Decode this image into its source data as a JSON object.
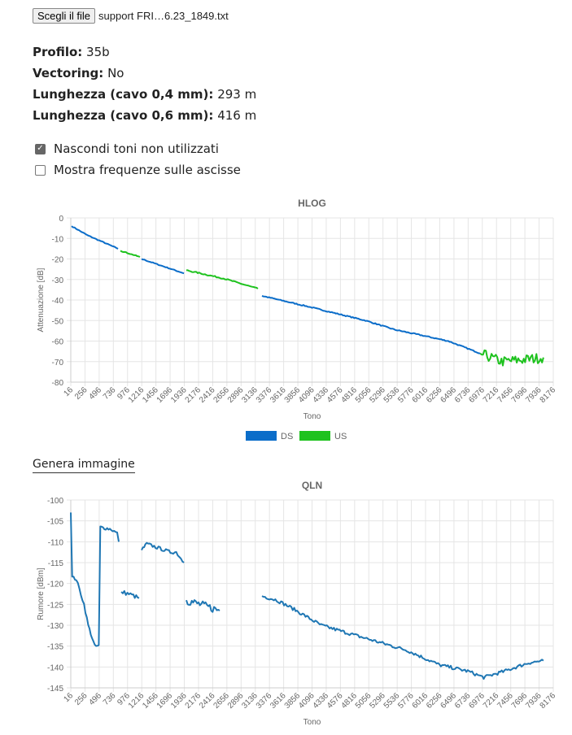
{
  "file": {
    "button_label": "Scegli il file",
    "filename": "support FRI…6.23_1849.txt"
  },
  "info": [
    {
      "label": "Profilo",
      "value": "35b"
    },
    {
      "label": "Vectoring",
      "value": "No"
    },
    {
      "label": "Lunghezza (cavo 0,4 mm)",
      "value": "293 m"
    },
    {
      "label": "Lunghezza (cavo 0,6 mm)",
      "value": "416 m"
    }
  ],
  "options": [
    {
      "label": "Nascondi toni non utilizzati",
      "checked": true
    },
    {
      "label": "Mostra frequenze sulle ascisse",
      "checked": false
    }
  ],
  "generate_image_label": "Genera immagine",
  "colors": {
    "ds": "#0b6dc9",
    "us": "#1ec21e",
    "qln": "#1f77b4",
    "grid": "#e5e5e5"
  },
  "chart_data": [
    {
      "type": "line",
      "title": "HLOG",
      "xlabel": "Tono",
      "ylabel": "Attenuazione [dB]",
      "xlim": [
        16,
        8176
      ],
      "ylim": [
        -80,
        0
      ],
      "yticks": [
        0,
        -10,
        -20,
        -30,
        -40,
        -50,
        -60,
        -70,
        -80
      ],
      "xticks": [
        16,
        256,
        496,
        736,
        976,
        1216,
        1456,
        1696,
        1936,
        2176,
        2416,
        2656,
        2896,
        3136,
        3376,
        3616,
        3856,
        4096,
        4336,
        4576,
        4816,
        5056,
        5296,
        5536,
        5776,
        6016,
        6256,
        6496,
        6736,
        6976,
        7216,
        7456,
        7696,
        7936,
        8176
      ],
      "grid": true,
      "legend": "bottom",
      "legend_items": [
        {
          "name": "DS",
          "color": "#0b6dc9"
        },
        {
          "name": "US",
          "color": "#1ec21e"
        }
      ],
      "series": [
        {
          "name": "DS",
          "color": "#0b6dc9",
          "segments": [
            {
              "noise": 0.2,
              "points": [
                [
                  30,
                  -4
                ],
                [
                  300,
                  -8.5
                ],
                [
                  815,
                  -15
                ]
              ]
            },
            {
              "noise": 0.2,
              "points": [
                [
                  1213,
                  -20
                ],
                [
                  1930,
                  -27
                ]
              ]
            },
            {
              "noise": 0.25,
              "points": [
                [
                  3250,
                  -38
                ],
                [
                  4000,
                  -43
                ],
                [
                  5000,
                  -50
                ],
                [
                  5500,
                  -54.5
                ],
                [
                  6000,
                  -57.5
                ],
                [
                  6400,
                  -60
                ],
                [
                  6940,
                  -66
                ]
              ]
            }
          ]
        },
        {
          "name": "US",
          "color": "#1ec21e",
          "segments": [
            {
              "noise": 0.2,
              "points": [
                [
                  855,
                  -16
                ],
                [
                  1185,
                  -19
                ]
              ]
            },
            {
              "noise": 0.3,
              "points": [
                [
                  1970,
                  -25.5
                ],
                [
                  2600,
                  -29.5
                ],
                [
                  3180,
                  -34.5
                ]
              ]
            },
            {
              "noise": 2.5,
              "points": [
                [
                  6940,
                  -66
                ],
                [
                  7300,
                  -70
                ],
                [
                  7700,
                  -69
                ],
                [
                  8010,
                  -68
                ]
              ]
            }
          ]
        }
      ]
    },
    {
      "type": "line",
      "title": "QLN",
      "xlabel": "Tono",
      "ylabel": "Rumore [dBm]",
      "xlim": [
        16,
        8176
      ],
      "ylim": [
        -145,
        -100
      ],
      "yticks": [
        -100,
        -105,
        -110,
        -115,
        -120,
        -125,
        -130,
        -135,
        -140,
        -145
      ],
      "xticks": [
        16,
        256,
        496,
        736,
        976,
        1216,
        1456,
        1696,
        1936,
        2176,
        2416,
        2656,
        2896,
        3136,
        3376,
        3616,
        3856,
        4096,
        4336,
        4576,
        4816,
        5056,
        5296,
        5536,
        5776,
        6016,
        6256,
        6496,
        6736,
        6976,
        7216,
        7456,
        7696,
        7936,
        8176
      ],
      "grid": true,
      "legend": "none",
      "series": [
        {
          "name": "QLN",
          "color": "#1f77b4",
          "segments": [
            {
              "noise": 0.4,
              "points": [
                [
                  16,
                  -103
                ],
                [
                  40,
                  -118.5
                ],
                [
                  110,
                  -119
                ],
                [
                  240,
                  -125
                ],
                [
                  310,
                  -130
                ],
                [
                  420,
                  -135
                ],
                [
                  490,
                  -135
                ],
                [
                  515,
                  -106.5
                ],
                [
                  700,
                  -107
                ],
                [
                  800,
                  -108
                ],
                [
                  828,
                  -110
                ]
              ]
            },
            {
              "noise": 0.5,
              "points": [
                [
                  870,
                  -122
                ],
                [
                  1000,
                  -122.5
                ],
                [
                  1172,
                  -123.5
                ]
              ]
            },
            {
              "noise": 0.4,
              "points": [
                [
                  1213,
                  -112
                ],
                [
                  1300,
                  -110.5
                ],
                [
                  1500,
                  -111.5
                ],
                [
                  1700,
                  -112.5
                ],
                [
                  1800,
                  -112.5
                ],
                [
                  1930,
                  -115
                ]
              ]
            },
            {
              "noise": 1.0,
              "points": [
                [
                  1970,
                  -124
                ],
                [
                  2200,
                  -125
                ],
                [
                  2534,
                  -126.5
                ]
              ]
            },
            {
              "noise": 0.4,
              "points": [
                [
                  3250,
                  -123
                ],
                [
                  3500,
                  -124
                ],
                [
                  3770,
                  -126
                ],
                [
                  4250,
                  -130
                ],
                [
                  4730,
                  -132
                ],
                [
                  5700,
                  -136
                ],
                [
                  6250,
                  -139.5
                ],
                [
                  6730,
                  -141
                ],
                [
                  7000,
                  -142.5
                ],
                [
                  7350,
                  -141
                ],
                [
                  7760,
                  -139
                ],
                [
                  8010,
                  -138.5
                ]
              ]
            }
          ]
        }
      ]
    }
  ]
}
